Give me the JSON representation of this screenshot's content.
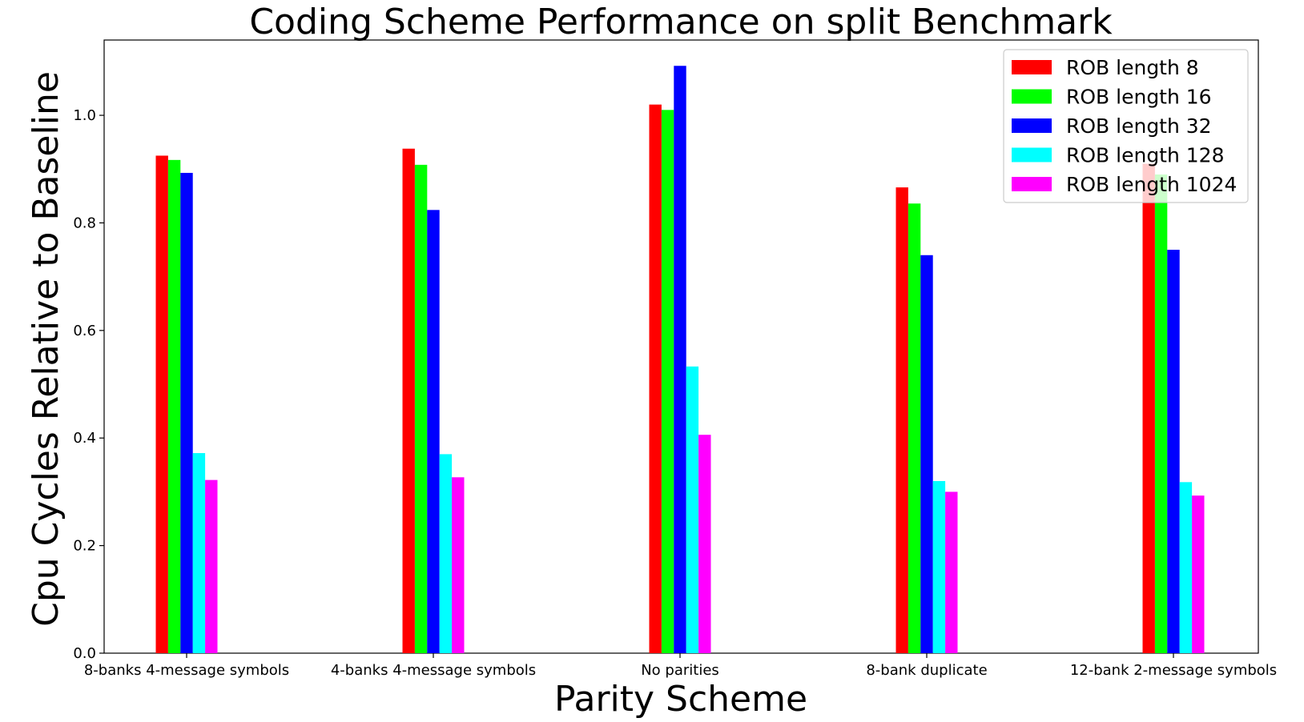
{
  "chart_data": {
    "type": "bar",
    "title": "Coding Scheme Performance on split Benchmark",
    "xlabel": "Parity Scheme",
    "ylabel": "Cpu Cycles Relative to Baseline",
    "ylim": [
      0,
      1.14
    ],
    "yticks": [
      "0.0",
      "0.2",
      "0.4",
      "0.6",
      "0.8",
      "1.0"
    ],
    "categories": [
      "8-banks 4-message symbols",
      "4-banks 4-message symbols",
      "No parities",
      "8-bank duplicate",
      "12-bank 2-message symbols"
    ],
    "series": [
      {
        "name": "ROB length 8",
        "color": "#ff0000",
        "values": [
          0.925,
          0.938,
          1.02,
          0.866,
          0.91
        ]
      },
      {
        "name": "ROB length 16",
        "color": "#00ff00",
        "values": [
          0.917,
          0.908,
          1.01,
          0.836,
          0.89
        ]
      },
      {
        "name": "ROB length 32",
        "color": "#0000ff",
        "values": [
          0.893,
          0.824,
          1.092,
          0.74,
          0.75
        ]
      },
      {
        "name": "ROB length 128",
        "color": "#00ffff",
        "values": [
          0.372,
          0.37,
          0.533,
          0.32,
          0.318
        ]
      },
      {
        "name": "ROB length 1024",
        "color": "#ff00ff",
        "values": [
          0.322,
          0.327,
          0.406,
          0.3,
          0.293
        ]
      }
    ],
    "grid": false,
    "legend_position": "top-right"
  }
}
